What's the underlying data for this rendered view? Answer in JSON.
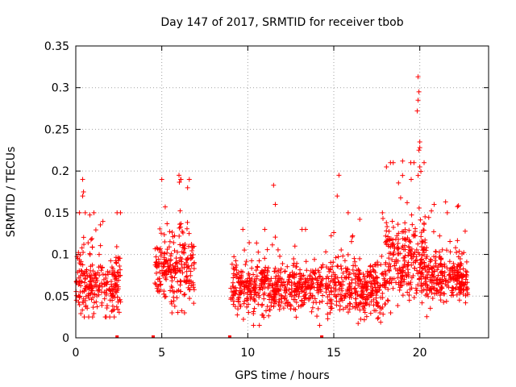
{
  "chart_data": {
    "type": "scatter",
    "title": "Day 147 of 2017, SRMTID for receiver tbob",
    "xlabel": "GPS time / hours",
    "ylabel": "SRMTID / TECUs",
    "xlim": [
      0,
      24
    ],
    "ylim": [
      0,
      0.35
    ],
    "xticks": [
      0,
      5,
      10,
      15,
      20
    ],
    "yticks": [
      0,
      0.05,
      0.1,
      0.15,
      0.2,
      0.25,
      0.3,
      0.35
    ],
    "xtick_labels": [
      "0",
      "5",
      "10",
      "15",
      "20"
    ],
    "ytick_labels": [
      "0",
      "0.05",
      "0.1",
      "0.15",
      "0.2",
      "0.25",
      "0.3",
      "0.35"
    ],
    "grid": true,
    "marker": "+",
    "color": "#ff0000",
    "series": [
      {
        "name": "SRMTID",
        "clusters": [
          {
            "x_start": 0.0,
            "x_end": 2.6,
            "n": 260,
            "center": 0.065,
            "spread": 0.03,
            "min": 0.025,
            "max": 0.15
          },
          {
            "x_start": 4.6,
            "x_end": 6.9,
            "n": 230,
            "center": 0.08,
            "spread": 0.035,
            "min": 0.03,
            "max": 0.19
          },
          {
            "x_start": 9.0,
            "x_end": 14.4,
            "n": 520,
            "center": 0.06,
            "spread": 0.025,
            "min": 0.015,
            "max": 0.13
          },
          {
            "x_start": 14.5,
            "x_end": 18.0,
            "n": 350,
            "center": 0.06,
            "spread": 0.03,
            "min": 0.01,
            "max": 0.15
          },
          {
            "x_start": 18.0,
            "x_end": 20.4,
            "n": 280,
            "center": 0.09,
            "spread": 0.04,
            "min": 0.03,
            "max": 0.21
          },
          {
            "x_start": 20.4,
            "x_end": 22.8,
            "n": 260,
            "center": 0.07,
            "spread": 0.025,
            "min": 0.02,
            "max": 0.16
          }
        ],
        "peaks": [
          {
            "x": 0.4,
            "y": 0.19
          },
          {
            "x": 0.45,
            "y": 0.175
          },
          {
            "x": 0.4,
            "y": 0.17
          },
          {
            "x": 2.4,
            "y": 0.15
          },
          {
            "x": 6.0,
            "y": 0.195
          },
          {
            "x": 6.6,
            "y": 0.19
          },
          {
            "x": 6.5,
            "y": 0.18
          },
          {
            "x": 5.2,
            "y": 0.157
          },
          {
            "x": 11.5,
            "y": 0.183
          },
          {
            "x": 11.6,
            "y": 0.16
          },
          {
            "x": 15.3,
            "y": 0.195
          },
          {
            "x": 15.2,
            "y": 0.17
          },
          {
            "x": 19.0,
            "y": 0.212
          },
          {
            "x": 19.9,
            "y": 0.313
          },
          {
            "x": 19.95,
            "y": 0.295
          },
          {
            "x": 19.9,
            "y": 0.285
          },
          {
            "x": 19.85,
            "y": 0.272
          },
          {
            "x": 20.0,
            "y": 0.235
          },
          {
            "x": 20.0,
            "y": 0.228
          },
          {
            "x": 19.95,
            "y": 0.225
          },
          {
            "x": 20.0,
            "y": 0.205
          },
          {
            "x": 19.5,
            "y": 0.19
          },
          {
            "x": 21.5,
            "y": 0.163
          },
          {
            "x": 21.6,
            "y": 0.15
          }
        ],
        "zero_points": [
          {
            "x": 2.4,
            "y": 0
          },
          {
            "x": 4.5,
            "y": 0
          },
          {
            "x": 8.95,
            "y": 0
          },
          {
            "x": 14.3,
            "y": 0
          }
        ]
      }
    ]
  }
}
